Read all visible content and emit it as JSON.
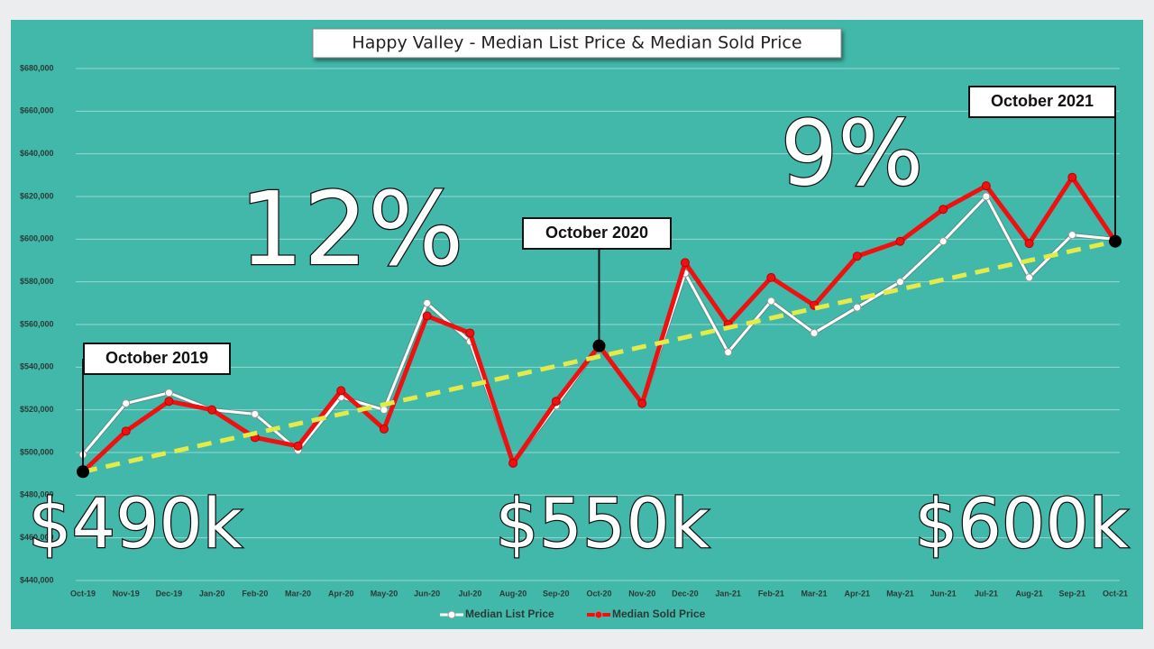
{
  "chart_data": {
    "type": "line",
    "title": "Happy Valley - Median List Price & Median Sold Price",
    "categories": [
      "Oct-19",
      "Nov-19",
      "Dec-19",
      "Jan-20",
      "Feb-20",
      "Mar-20",
      "Apr-20",
      "May-20",
      "Jun-20",
      "Jul-20",
      "Aug-20",
      "Sep-20",
      "Oct-20",
      "Nov-20",
      "Dec-20",
      "Jan-21",
      "Feb-21",
      "Mar-21",
      "Apr-21",
      "May-21",
      "Jun-21",
      "Jul-21",
      "Aug-21",
      "Sep-21",
      "Oct-21"
    ],
    "series": [
      {
        "name": "Median List Price",
        "color": "#ffffff",
        "values": [
          499000,
          523000,
          528000,
          520000,
          518000,
          501000,
          526000,
          520000,
          570000,
          552000,
          495000,
          522000,
          550000,
          523000,
          584000,
          547000,
          571000,
          556000,
          568000,
          580000,
          599000,
          620000,
          582000,
          602000,
          600000
        ]
      },
      {
        "name": "Median Sold Price",
        "color": "#ee1111",
        "values": [
          491000,
          510000,
          524000,
          520000,
          507000,
          503000,
          529000,
          511000,
          564000,
          556000,
          495000,
          524000,
          550000,
          523000,
          589000,
          560000,
          582000,
          569000,
          592000,
          599000,
          614000,
          625000,
          598000,
          629000,
          599000
        ]
      }
    ],
    "trendline": {
      "color": "#e4ea4a",
      "start": 491000,
      "end": 599000
    },
    "ylim": [
      440000,
      680000
    ],
    "yticks": [
      {
        "value": 440000,
        "label": "$440,000"
      },
      {
        "value": 460000,
        "label": "$460,000"
      },
      {
        "value": 480000,
        "label": "$480,000"
      },
      {
        "value": 500000,
        "label": "$500,000"
      },
      {
        "value": 520000,
        "label": "$520,000"
      },
      {
        "value": 540000,
        "label": "$540,000"
      },
      {
        "value": 560000,
        "label": "$560,000"
      },
      {
        "value": 580000,
        "label": "$580,000"
      },
      {
        "value": 600000,
        "label": "$600,000"
      },
      {
        "value": 620000,
        "label": "$620,000"
      },
      {
        "value": 640000,
        "label": "$640,000"
      },
      {
        "value": 660000,
        "label": "$660,000"
      },
      {
        "value": 680000,
        "label": "$680,000"
      }
    ],
    "grid": true,
    "legend": "bottom",
    "callouts": [
      {
        "label": "October 2019",
        "x": "Oct-19",
        "y": 491000
      },
      {
        "label": "October 2020",
        "x": "Oct-20",
        "y": 550000
      },
      {
        "label": "October 2021",
        "x": "Oct-21",
        "y": 599000
      }
    ],
    "overlay_texts": [
      "12%",
      "9%",
      "$490k",
      "$550k",
      "$600k"
    ]
  }
}
